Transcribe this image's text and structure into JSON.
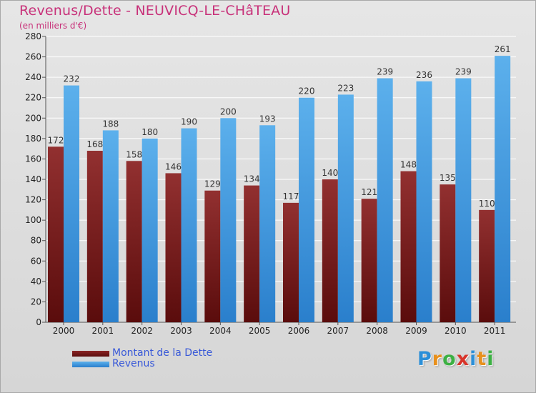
{
  "title": "Revenus/Dette - NEUVICQ-LE-CHâTEAU",
  "subtitle": "(en milliers d'€)",
  "chart_data": {
    "type": "bar",
    "categories": [
      "2000",
      "2001",
      "2002",
      "2003",
      "2004",
      "2005",
      "2006",
      "2007",
      "2008",
      "2009",
      "2010",
      "2011"
    ],
    "series": [
      {
        "name": "Montant de la Dette",
        "values": [
          172,
          168,
          158,
          146,
          129,
          134,
          117,
          140,
          121,
          148,
          135,
          110
        ],
        "color": "#8b2424"
      },
      {
        "name": "Revenus",
        "values": [
          232,
          188,
          180,
          190,
          200,
          193,
          220,
          223,
          239,
          236,
          239,
          261
        ],
        "color": "#4fa3e3"
      }
    ],
    "ylim": [
      0,
      280
    ],
    "yticks": [
      0,
      20,
      40,
      60,
      80,
      100,
      120,
      140,
      160,
      180,
      200,
      220,
      240,
      260,
      280
    ],
    "grid": true,
    "legend": "bottom-left"
  },
  "logo": {
    "letters": [
      "P",
      "r",
      "o",
      "x",
      "i",
      "t",
      "i"
    ],
    "colors": [
      "#2b8fd8",
      "#e8901c",
      "#3cb043",
      "#d8342a",
      "#2b8fd8",
      "#e8901c",
      "#3cb043"
    ]
  },
  "colors": {
    "title": "#c8327a",
    "legend_text": "#3a5ad8"
  }
}
